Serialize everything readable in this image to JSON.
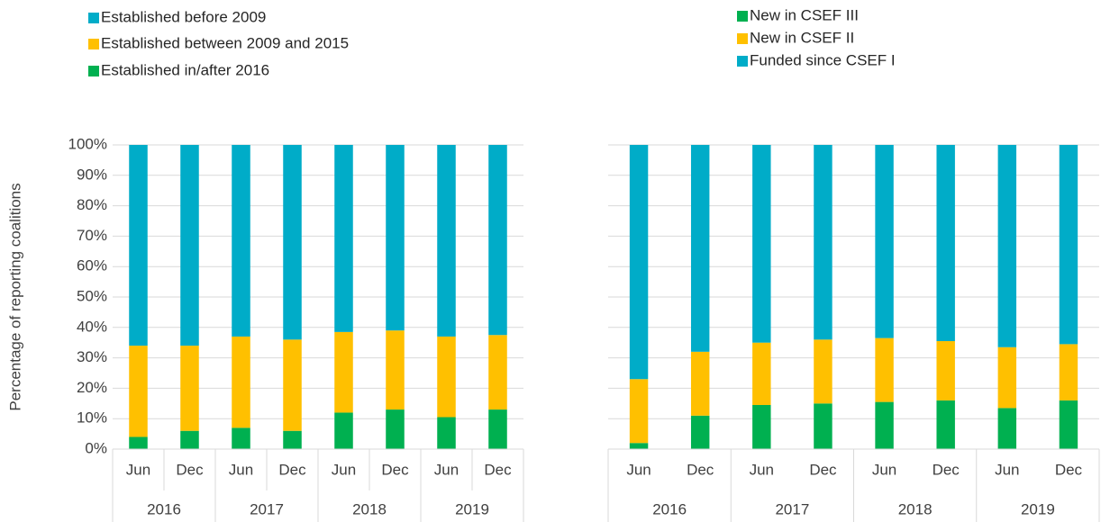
{
  "chart_data": [
    {
      "type": "stacked_bar",
      "y_label": "Percentage of reporting coalitions",
      "categories": [
        "Jun",
        "Dec",
        "Jun",
        "Dec",
        "Jun",
        "Dec",
        "Jun",
        "Dec"
      ],
      "groups": [
        "2016",
        "2017",
        "2018",
        "2019"
      ],
      "legend_reversed": true,
      "series": [
        {
          "name": "Established in/after 2016",
          "color": "#00b050",
          "values": [
            4,
            6,
            7,
            6,
            12,
            13,
            10.5,
            13
          ]
        },
        {
          "name": "Established between 2009 and 2015",
          "color": "#ffc000",
          "values": [
            30,
            28,
            30,
            30,
            26.5,
            26,
            26.5,
            24.5
          ]
        },
        {
          "name": "Established before 2009",
          "color": "#00acc8",
          "values": [
            66,
            66,
            63,
            64,
            61.5,
            61,
            63,
            62.5
          ]
        }
      ],
      "ylim": [
        0,
        100
      ],
      "yticks": [
        {
          "value": 0,
          "label": "0%"
        },
        {
          "value": 10,
          "label": "10%"
        },
        {
          "value": 20,
          "label": "20%"
        },
        {
          "value": 30,
          "label": "30%"
        },
        {
          "value": 40,
          "label": "40%"
        },
        {
          "value": 50,
          "label": "50%"
        },
        {
          "value": 60,
          "label": "60%"
        },
        {
          "value": 70,
          "label": "70%"
        },
        {
          "value": 80,
          "label": "80%"
        },
        {
          "value": 90,
          "label": "90%"
        },
        {
          "value": 100,
          "label": "100%"
        }
      ],
      "grid": true
    },
    {
      "type": "stacked_bar",
      "categories": [
        "Jun",
        "Dec",
        "Jun",
        "Dec",
        "Jun",
        "Dec",
        "Jun",
        "Dec"
      ],
      "groups": [
        "2016",
        "2017",
        "2018",
        "2019"
      ],
      "legend_reversed": false,
      "series": [
        {
          "name": "New in CSEF III",
          "color": "#00b050",
          "values": [
            2,
            11,
            14.5,
            15,
            15.5,
            16,
            13.5,
            16
          ]
        },
        {
          "name": "New in CSEF II",
          "color": "#ffc000",
          "values": [
            21,
            21,
            20.5,
            21,
            21,
            19.5,
            20,
            18.5
          ]
        },
        {
          "name": "Funded since CSEF I",
          "color": "#00acc8",
          "values": [
            77,
            68,
            65,
            64,
            63.5,
            64.5,
            66.5,
            65.5
          ]
        }
      ],
      "ylim": [
        0,
        100
      ],
      "yticks": [
        0,
        10,
        20,
        30,
        40,
        50,
        60,
        70,
        80,
        90,
        100
      ],
      "grid": true
    }
  ]
}
